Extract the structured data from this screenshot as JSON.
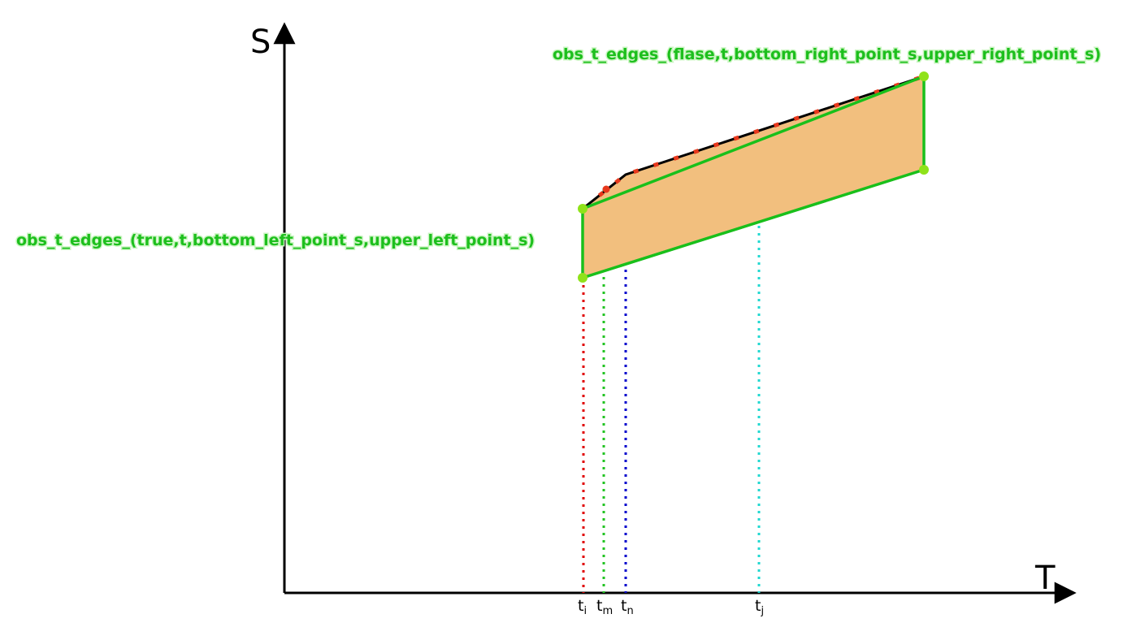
{
  "axes": {
    "y_label": "S",
    "x_label": "T"
  },
  "labels": {
    "left_edge": "obs_t_edges_(true,t,bottom_left_point_s,upper_left_point_s)",
    "right_edge": "obs_t_edges_(flase,t,bottom_right_point_s,upper_right_point_s)"
  },
  "time_ticks": [
    {
      "base": "t",
      "sub": "i",
      "color": "#e00000"
    },
    {
      "base": "t",
      "sub": "m",
      "color": "#22c322"
    },
    {
      "base": "t",
      "sub": "n",
      "color": "#0000cc"
    },
    {
      "base": "t",
      "sub": "j",
      "color": "#20d8d0"
    }
  ],
  "colors": {
    "fill": "#f2bf7e",
    "green": "#19c01b",
    "vertex": "#8fe21a",
    "red_dash": "#e8381c"
  }
}
